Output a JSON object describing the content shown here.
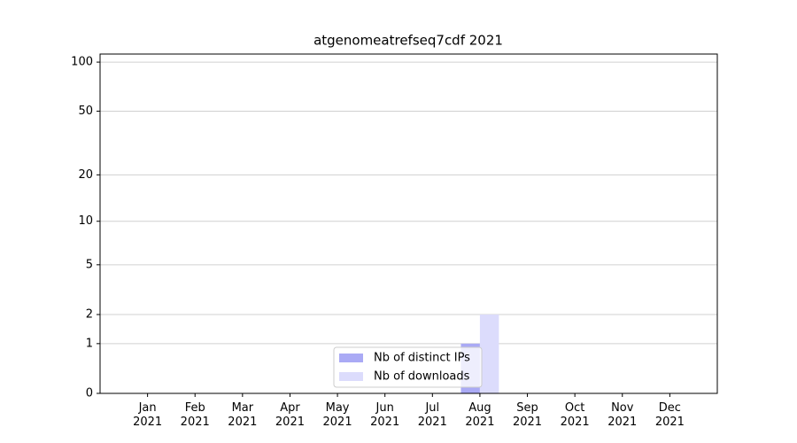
{
  "chart_data": {
    "type": "bar",
    "title": "atgenomeatrefseq7cdf 2021",
    "categories": [
      "Jan 2021",
      "Feb 2021",
      "Mar 2021",
      "Apr 2021",
      "May 2021",
      "Jun 2021",
      "Jul 2021",
      "Aug 2021",
      "Sep 2021",
      "Oct 2021",
      "Nov 2021",
      "Dec 2021"
    ],
    "series": [
      {
        "name": "Nb of distinct IPs",
        "color": "#aaaaf5",
        "values": [
          0,
          0,
          0,
          0,
          0,
          0,
          0,
          1,
          0,
          0,
          0,
          0
        ]
      },
      {
        "name": "Nb of downloads",
        "color": "#dcdcfc",
        "values": [
          0,
          0,
          0,
          0,
          0,
          0,
          0,
          2,
          0,
          0,
          0,
          0
        ]
      }
    ],
    "yscale": "log1p",
    "ylim": [
      0,
      112
    ],
    "yticks": [
      0,
      1,
      2,
      5,
      10,
      20,
      50,
      100
    ],
    "grid": true,
    "legend": "lower center"
  }
}
